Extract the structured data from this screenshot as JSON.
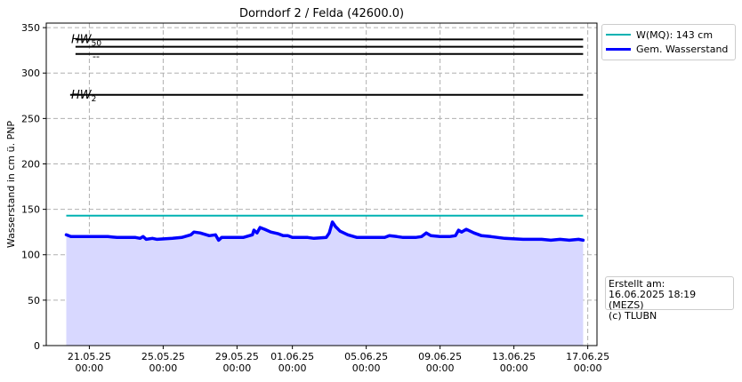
{
  "chart_data": {
    "type": "line",
    "title": "Dorndorf 2 / Felda (42600.0)",
    "xlabel": "",
    "ylabel": "Wasserstand in cm ü. PNP",
    "ylim": [
      0,
      355
    ],
    "yticks": [
      0,
      50,
      100,
      150,
      200,
      250,
      300,
      350
    ],
    "xlim": [
      "2025-05-18T16:00",
      "2025-06-17T12:00"
    ],
    "xticks": [
      {
        "date": "2025-05-21T00:00",
        "label": [
          "21.05.25",
          "00:00"
        ]
      },
      {
        "date": "2025-05-25T00:00",
        "label": [
          "25.05.25",
          "00:00"
        ]
      },
      {
        "date": "2025-05-29T00:00",
        "label": [
          "29.05.25",
          "00:00"
        ]
      },
      {
        "date": "2025-06-01T00:00",
        "label": [
          "01.06.25",
          "00:00"
        ]
      },
      {
        "date": "2025-06-05T00:00",
        "label": [
          "05.06.25",
          "00:00"
        ]
      },
      {
        "date": "2025-06-09T00:00",
        "label": [
          "09.06.25",
          "00:00"
        ]
      },
      {
        "date": "2025-06-13T00:00",
        "label": [
          "13.06.25",
          "00:00"
        ]
      },
      {
        "date": "2025-06-17T00:00",
        "label": [
          "17.06.25",
          "00:00"
        ]
      }
    ],
    "grid": true,
    "legend_position": "outside-top-right",
    "series": [
      {
        "name": "W(MQ): 143 cm",
        "color": "#00b2b2",
        "points": [
          [
            "2025-05-19T18:00",
            143
          ],
          [
            "2025-06-16T18:00",
            143
          ]
        ]
      },
      {
        "name": "Gem. Wasserstand",
        "color": "#0000ff",
        "fill": "#d8d8ff",
        "points": [
          [
            "2025-05-19T18:00",
            122
          ],
          [
            "2025-05-20T00:00",
            120
          ],
          [
            "2025-05-21T00:00",
            120
          ],
          [
            "2025-05-22T00:00",
            120
          ],
          [
            "2025-05-22T12:00",
            119
          ],
          [
            "2025-05-23T12:00",
            119
          ],
          [
            "2025-05-23T18:00",
            118
          ],
          [
            "2025-05-23T22:00",
            120
          ],
          [
            "2025-05-24T02:00",
            117
          ],
          [
            "2025-05-24T10:00",
            118
          ],
          [
            "2025-05-24T16:00",
            117
          ],
          [
            "2025-05-25T12:00",
            118
          ],
          [
            "2025-05-26T00:00",
            119
          ],
          [
            "2025-05-26T12:00",
            122
          ],
          [
            "2025-05-26T16:00",
            125
          ],
          [
            "2025-05-27T00:00",
            124
          ],
          [
            "2025-05-27T12:00",
            121
          ],
          [
            "2025-05-27T20:00",
            122
          ],
          [
            "2025-05-28T00:00",
            116
          ],
          [
            "2025-05-28T04:00",
            119
          ],
          [
            "2025-05-29T08:00",
            119
          ],
          [
            "2025-05-29T20:00",
            122
          ],
          [
            "2025-05-29T22:00",
            127
          ],
          [
            "2025-05-30T02:00",
            124
          ],
          [
            "2025-05-30T06:00",
            130
          ],
          [
            "2025-05-30T12:00",
            128
          ],
          [
            "2025-05-30T20:00",
            125
          ],
          [
            "2025-05-31T06:00",
            123
          ],
          [
            "2025-05-31T12:00",
            121
          ],
          [
            "2025-05-31T18:00",
            121
          ],
          [
            "2025-06-01T00:00",
            119
          ],
          [
            "2025-06-01T20:00",
            119
          ],
          [
            "2025-06-02T04:00",
            118
          ],
          [
            "2025-06-02T20:00",
            119
          ],
          [
            "2025-06-03T00:00",
            124
          ],
          [
            "2025-06-03T04:00",
            136
          ],
          [
            "2025-06-03T08:00",
            131
          ],
          [
            "2025-06-03T14:00",
            126
          ],
          [
            "2025-06-04T00:00",
            122
          ],
          [
            "2025-06-04T12:00",
            119
          ],
          [
            "2025-06-05T12:00",
            119
          ],
          [
            "2025-06-06T00:00",
            119
          ],
          [
            "2025-06-06T06:00",
            121
          ],
          [
            "2025-06-06T16:00",
            120
          ],
          [
            "2025-06-07T00:00",
            119
          ],
          [
            "2025-06-07T16:00",
            119
          ],
          [
            "2025-06-08T00:00",
            120
          ],
          [
            "2025-06-08T06:00",
            124
          ],
          [
            "2025-06-08T12:00",
            121
          ],
          [
            "2025-06-09T00:00",
            120
          ],
          [
            "2025-06-09T12:00",
            120
          ],
          [
            "2025-06-09T20:00",
            121
          ],
          [
            "2025-06-10T00:00",
            127
          ],
          [
            "2025-06-10T04:00",
            125
          ],
          [
            "2025-06-10T10:00",
            128
          ],
          [
            "2025-06-10T20:00",
            124
          ],
          [
            "2025-06-11T06:00",
            121
          ],
          [
            "2025-06-11T18:00",
            120
          ],
          [
            "2025-06-12T12:00",
            118
          ],
          [
            "2025-06-13T12:00",
            117
          ],
          [
            "2025-06-14T12:00",
            117
          ],
          [
            "2025-06-15T00:00",
            116
          ],
          [
            "2025-06-15T12:00",
            117
          ],
          [
            "2025-06-16T00:00",
            116
          ],
          [
            "2025-06-16T12:00",
            117
          ],
          [
            "2025-06-16T18:00",
            116
          ]
        ]
      }
    ],
    "reference_lines": [
      {
        "label_main": "HW",
        "label_sub": "50",
        "value": 337
      },
      {
        "label_main": "",
        "label_sub": "",
        "value": 329
      },
      {
        "label_main": "--",
        "label_sub": "",
        "value": 321
      },
      {
        "label_main": "HW",
        "label_sub": "2",
        "value": 276
      }
    ],
    "reference_line_span": [
      "2025-05-20T06:00",
      "2025-06-16T18:00"
    ],
    "info_box": [
      "Erstellt am:",
      "16.06.2025 18:19 (MEZS)",
      "(c) TLUBN"
    ]
  }
}
